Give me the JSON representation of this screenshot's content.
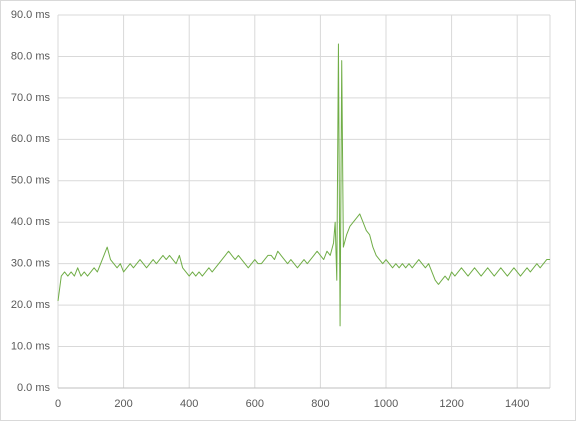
{
  "chart_data": {
    "type": "line",
    "x": [
      0,
      10,
      20,
      30,
      40,
      50,
      60,
      70,
      80,
      90,
      100,
      110,
      120,
      130,
      140,
      150,
      160,
      170,
      180,
      190,
      200,
      210,
      220,
      230,
      240,
      250,
      260,
      270,
      280,
      290,
      300,
      310,
      320,
      330,
      340,
      350,
      360,
      370,
      380,
      390,
      400,
      410,
      420,
      430,
      440,
      450,
      460,
      470,
      480,
      490,
      500,
      510,
      520,
      530,
      540,
      550,
      560,
      570,
      580,
      590,
      600,
      610,
      620,
      630,
      640,
      650,
      660,
      670,
      680,
      690,
      700,
      710,
      720,
      730,
      740,
      750,
      760,
      770,
      780,
      790,
      800,
      810,
      820,
      830,
      840,
      845,
      850,
      855,
      860,
      865,
      870,
      880,
      890,
      900,
      910,
      920,
      930,
      940,
      950,
      960,
      970,
      980,
      990,
      1000,
      1010,
      1020,
      1030,
      1040,
      1050,
      1060,
      1070,
      1080,
      1090,
      1100,
      1110,
      1120,
      1130,
      1140,
      1150,
      1160,
      1170,
      1180,
      1190,
      1200,
      1210,
      1220,
      1230,
      1240,
      1250,
      1260,
      1270,
      1280,
      1290,
      1300,
      1310,
      1320,
      1330,
      1340,
      1350,
      1360,
      1370,
      1380,
      1390,
      1400,
      1410,
      1420,
      1430,
      1440,
      1450,
      1460,
      1470,
      1480,
      1490,
      1500
    ],
    "series": [
      {
        "color": "#70ad47",
        "values": [
          21,
          27,
          28,
          27,
          28,
          27,
          29,
          27,
          28,
          27,
          28,
          29,
          28,
          30,
          32,
          34,
          31,
          30,
          29,
          30,
          28,
          29,
          30,
          29,
          30,
          31,
          30,
          29,
          30,
          31,
          30,
          31,
          32,
          31,
          32,
          31,
          30,
          32,
          29,
          28,
          27,
          28,
          27,
          28,
          27,
          28,
          29,
          28,
          29,
          30,
          31,
          32,
          33,
          32,
          31,
          32,
          31,
          30,
          29,
          30,
          31,
          30,
          30,
          31,
          32,
          32,
          31,
          33,
          32,
          31,
          30,
          31,
          30,
          29,
          30,
          31,
          30,
          31,
          32,
          33,
          32,
          31,
          33,
          32,
          35,
          40,
          26,
          83,
          15,
          79,
          34,
          37,
          39,
          40,
          41,
          42,
          40,
          38,
          37,
          34,
          32,
          31,
          30,
          31,
          30,
          29,
          30,
          29,
          30,
          29,
          30,
          29,
          30,
          31,
          30,
          29,
          30,
          28,
          26,
          25,
          26,
          27,
          26,
          28,
          27,
          28,
          29,
          28,
          27,
          28,
          29,
          28,
          27,
          28,
          29,
          28,
          27,
          28,
          29,
          28,
          27,
          28,
          29,
          28,
          27,
          28,
          29,
          28,
          29,
          30,
          29,
          30,
          31,
          31
        ]
      }
    ],
    "xlim": [
      0,
      1500
    ],
    "xticks": [
      0,
      200,
      400,
      600,
      800,
      1000,
      1200,
      1400
    ],
    "ylim": [
      0,
      90
    ],
    "yticks": [
      {
        "value": 0,
        "label": "0.0 ms"
      },
      {
        "value": 10,
        "label": "10.0 ms"
      },
      {
        "value": 20,
        "label": "20.0 ms"
      },
      {
        "value": 30,
        "label": "30.0 ms"
      },
      {
        "value": 40,
        "label": "40.0 ms"
      },
      {
        "value": 50,
        "label": "50.0 ms"
      },
      {
        "value": 60,
        "label": "60.0 ms"
      },
      {
        "value": 70,
        "label": "70.0 ms"
      },
      {
        "value": 80,
        "label": "80.0 ms"
      },
      {
        "value": 90,
        "label": "90.0 ms"
      }
    ],
    "grid": true
  }
}
